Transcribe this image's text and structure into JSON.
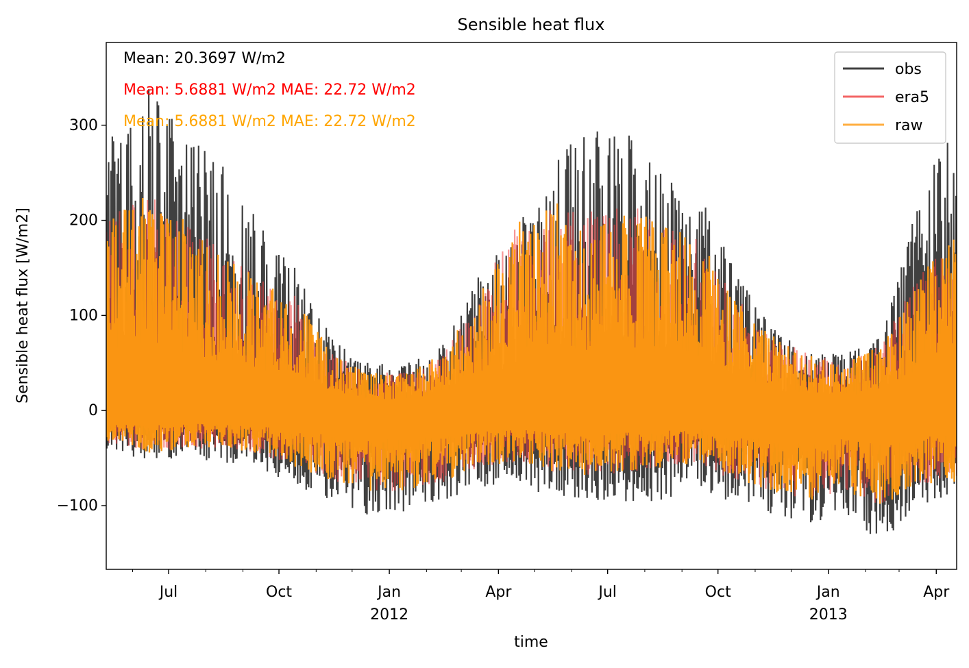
{
  "chart_data": {
    "type": "line",
    "title": "Sensible heat flux",
    "xlabel": "time",
    "ylabel": "Sensible heat flux [W/m2]",
    "xlim": [
      "2011-05-10",
      "2013-04-18"
    ],
    "ylim": [
      -167,
      387
    ],
    "grid": false,
    "legend_position": "top-right",
    "y_ticks": [
      {
        "value": -100,
        "label": "−100"
      },
      {
        "value": 0,
        "label": "0"
      },
      {
        "value": 100,
        "label": "100"
      },
      {
        "value": 200,
        "label": "200"
      },
      {
        "value": 300,
        "label": "300"
      }
    ],
    "x_ticks": [
      {
        "date": "2011-07-01",
        "label": "Jul",
        "sublabel": ""
      },
      {
        "date": "2011-10-01",
        "label": "Oct",
        "sublabel": ""
      },
      {
        "date": "2012-01-01",
        "label": "Jan",
        "sublabel": "2012"
      },
      {
        "date": "2012-04-01",
        "label": "Apr",
        "sublabel": ""
      },
      {
        "date": "2012-07-01",
        "label": "Jul",
        "sublabel": ""
      },
      {
        "date": "2012-10-01",
        "label": "Oct",
        "sublabel": ""
      },
      {
        "date": "2013-01-01",
        "label": "Jan",
        "sublabel": "2013"
      },
      {
        "date": "2013-04-01",
        "label": "Apr",
        "sublabel": ""
      }
    ],
    "annotations": [
      {
        "text": "Mean: 20.3697 W/m2",
        "color": "#000000"
      },
      {
        "text": "Mean: 5.6881 W/m2 MAE: 22.72 W/m2",
        "color": "#ff0000"
      },
      {
        "text": "Mean: 5.6881 W/m2 MAE: 22.72 W/m2",
        "color": "#ffa500"
      }
    ],
    "series": [
      {
        "name": "obs",
        "color": "#404040",
        "opacity": 1.0
      },
      {
        "name": "era5",
        "color": "#f04040",
        "opacity": 0.8
      },
      {
        "name": "raw",
        "color": "#ff9a10",
        "opacity": 0.8
      }
    ],
    "envelope_monthly": {
      "months": [
        "2011-05-15",
        "2011-06-15",
        "2011-07-15",
        "2011-08-15",
        "2011-09-15",
        "2011-10-15",
        "2011-11-15",
        "2011-12-15",
        "2012-01-15",
        "2012-02-15",
        "2012-03-15",
        "2012-04-15",
        "2012-05-15",
        "2012-06-15",
        "2012-07-15",
        "2012-08-15",
        "2012-09-15",
        "2012-10-15",
        "2012-11-15",
        "2012-12-15",
        "2013-01-15",
        "2013-02-15",
        "2013-03-15",
        "2013-04-15"
      ],
      "obs_max": [
        300,
        340,
        290,
        260,
        200,
        150,
        80,
        50,
        50,
        70,
        140,
        190,
        260,
        300,
        300,
        250,
        230,
        150,
        90,
        60,
        60,
        80,
        210,
        330
      ],
      "obs_min": [
        -40,
        -55,
        -50,
        -55,
        -60,
        -80,
        -100,
        -110,
        -110,
        -100,
        -80,
        -80,
        -90,
        -95,
        -100,
        -95,
        -80,
        -100,
        -110,
        -120,
        -110,
        -140,
        -100,
        -90
      ],
      "raw_max": [
        210,
        230,
        200,
        170,
        140,
        120,
        60,
        40,
        40,
        60,
        120,
        200,
        220,
        210,
        220,
        200,
        180,
        120,
        80,
        60,
        50,
        70,
        140,
        180
      ],
      "raw_min": [
        -35,
        -45,
        -40,
        -40,
        -45,
        -60,
        -75,
        -85,
        -85,
        -75,
        -60,
        -55,
        -65,
        -70,
        -65,
        -60,
        -55,
        -75,
        -85,
        -95,
        -85,
        -100,
        -80,
        -75
      ]
    }
  }
}
